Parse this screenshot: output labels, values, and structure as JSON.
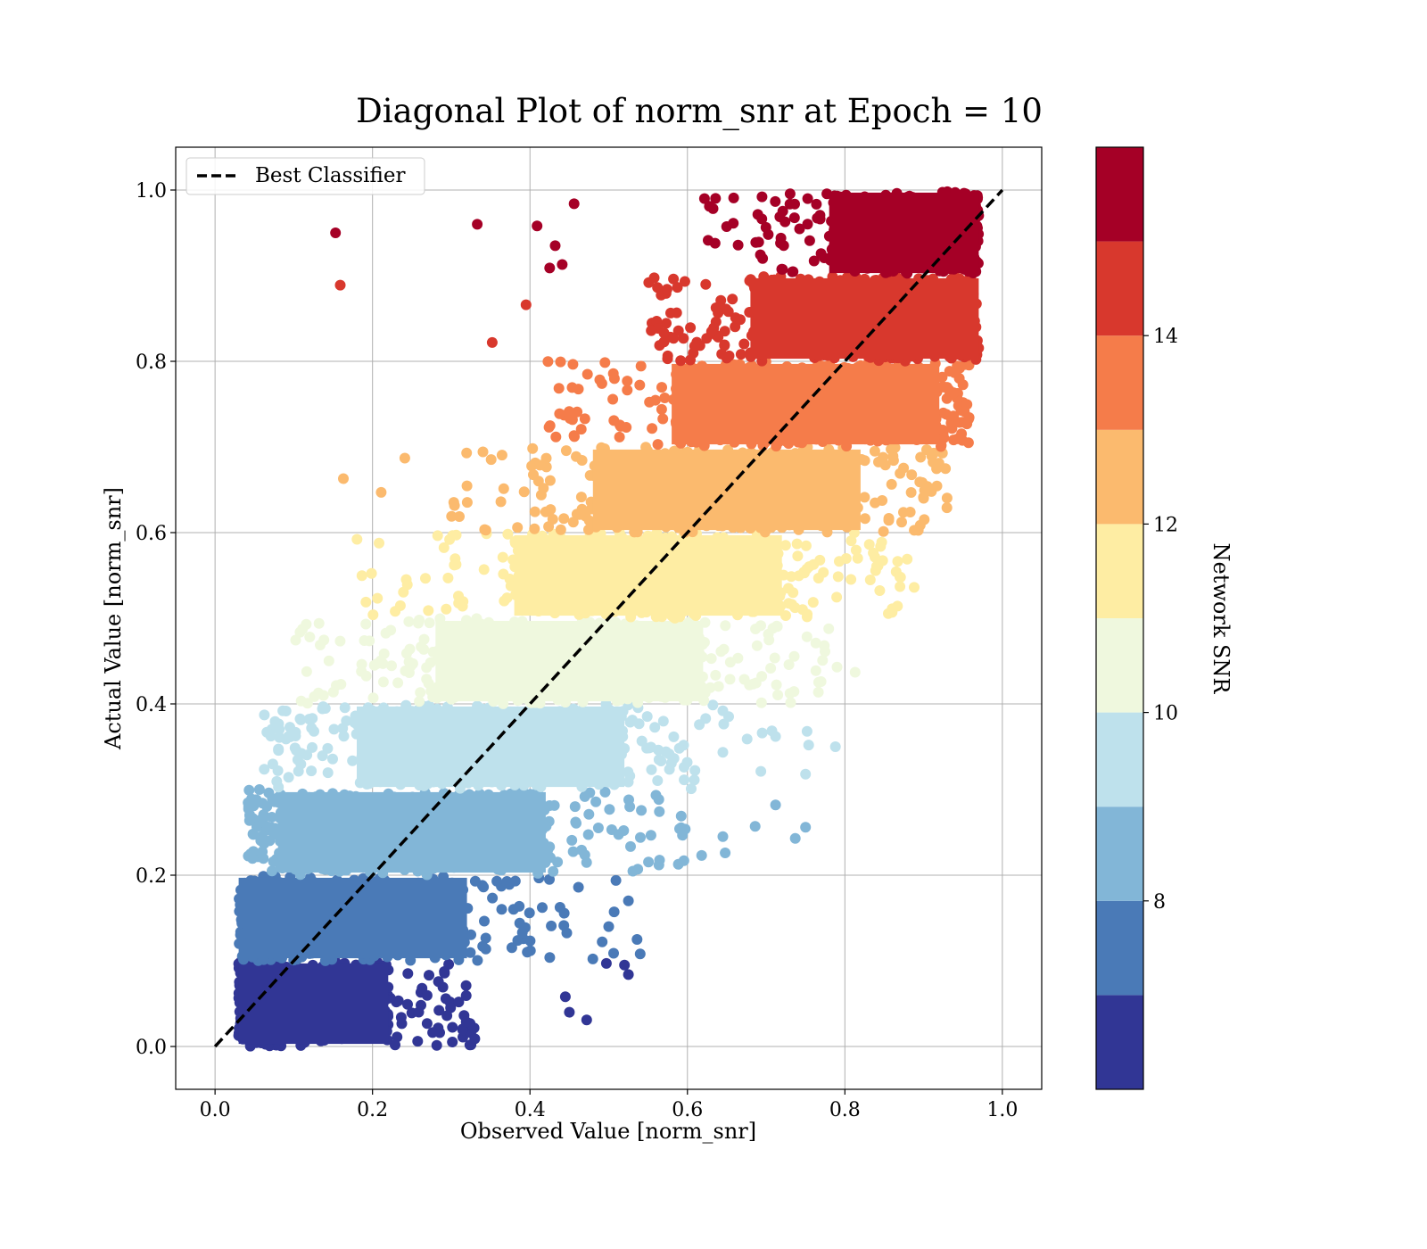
{
  "chart_data": {
    "type": "scatter",
    "title": "Diagonal Plot of norm_snr at Epoch = 10",
    "xlabel": "Observed Value [norm_snr]",
    "ylabel": "Actual Value [norm_snr]",
    "xlim": [
      -0.05,
      1.05
    ],
    "ylim": [
      -0.05,
      1.05
    ],
    "xticks": [
      0.0,
      0.2,
      0.4,
      0.6,
      0.8,
      1.0
    ],
    "yticks": [
      0.0,
      0.2,
      0.4,
      0.6,
      0.8,
      1.0
    ],
    "xtick_labels": [
      "0.0",
      "0.2",
      "0.4",
      "0.6",
      "0.8",
      "1.0"
    ],
    "ytick_labels": [
      "0.0",
      "0.2",
      "0.4",
      "0.6",
      "0.8",
      "1.0"
    ],
    "grid": true,
    "legend": {
      "placement": "top-left",
      "entries": [
        {
          "label": "Best Classifier",
          "style": "dashed",
          "color": "#000000"
        }
      ]
    },
    "reference_line": {
      "name": "Best Classifier",
      "x": [
        0.0,
        1.0
      ],
      "y": [
        0.0,
        1.0
      ]
    },
    "colorbar": {
      "label": "Network SNR",
      "range": [
        6,
        16
      ],
      "ticks": [
        8,
        10,
        12,
        14
      ],
      "tick_labels": [
        "8",
        "10",
        "12",
        "14"
      ],
      "bins": [
        {
          "min": 6,
          "max": 7,
          "color": "#313695"
        },
        {
          "min": 7,
          "max": 8,
          "color": "#4a7ab7"
        },
        {
          "min": 8,
          "max": 9,
          "color": "#82b6d7"
        },
        {
          "min": 9,
          "max": 10,
          "color": "#bee1ec"
        },
        {
          "min": 10,
          "max": 11,
          "color": "#eff8de"
        },
        {
          "min": 11,
          "max": 12,
          "color": "#feeda3"
        },
        {
          "min": 12,
          "max": 13,
          "color": "#fbba6e"
        },
        {
          "min": 13,
          "max": 14,
          "color": "#f57c4a"
        },
        {
          "min": 14,
          "max": 15,
          "color": "#d8382d"
        },
        {
          "min": 15,
          "max": 16,
          "color": "#a50026"
        }
      ]
    },
    "bands": [
      {
        "y_range": [
          0.0,
          0.1
        ],
        "x_range": [
          0.03,
          0.33
        ],
        "color": "#313695"
      },
      {
        "y_range": [
          0.1,
          0.2
        ],
        "x_range": [
          0.03,
          0.55
        ],
        "color": "#4a7ab7"
      },
      {
        "y_range": [
          0.2,
          0.3
        ],
        "x_range": [
          0.04,
          0.6
        ],
        "color": "#82b6d7"
      },
      {
        "y_range": [
          0.3,
          0.4
        ],
        "x_range": [
          0.06,
          0.72
        ],
        "color": "#bee1ec"
      },
      {
        "y_range": [
          0.4,
          0.5
        ],
        "x_range": [
          0.1,
          0.78
        ],
        "color": "#eff8de"
      },
      {
        "y_range": [
          0.5,
          0.6
        ],
        "x_range": [
          0.18,
          0.88
        ],
        "color": "#feeda3"
      },
      {
        "y_range": [
          0.6,
          0.7
        ],
        "x_range": [
          0.3,
          0.93
        ],
        "color": "#fbba6e"
      },
      {
        "y_range": [
          0.7,
          0.8
        ],
        "x_range": [
          0.42,
          0.96
        ],
        "color": "#f57c4a"
      },
      {
        "y_range": [
          0.8,
          0.9
        ],
        "x_range": [
          0.55,
          0.97
        ],
        "color": "#d8382d"
      },
      {
        "y_range": [
          0.9,
          1.0
        ],
        "x_range": [
          0.62,
          0.97
        ],
        "color": "#a50026"
      }
    ],
    "outliers": [
      {
        "x": 0.153,
        "y": 0.95,
        "color": "#a50026"
      },
      {
        "x": 0.159,
        "y": 0.889,
        "color": "#d8382d"
      },
      {
        "x": 0.333,
        "y": 0.96,
        "color": "#a50026"
      },
      {
        "x": 0.409,
        "y": 0.958,
        "color": "#a50026"
      },
      {
        "x": 0.456,
        "y": 0.984,
        "color": "#a50026"
      },
      {
        "x": 0.432,
        "y": 0.935,
        "color": "#a50026"
      },
      {
        "x": 0.441,
        "y": 0.913,
        "color": "#a50026"
      },
      {
        "x": 0.425,
        "y": 0.909,
        "color": "#a50026"
      },
      {
        "x": 0.395,
        "y": 0.866,
        "color": "#d8382d"
      },
      {
        "x": 0.352,
        "y": 0.822,
        "color": "#d8382d"
      },
      {
        "x": 0.163,
        "y": 0.663,
        "color": "#fbba6e"
      },
      {
        "x": 0.211,
        "y": 0.647,
        "color": "#fbba6e"
      },
      {
        "x": 0.241,
        "y": 0.687,
        "color": "#fbba6e"
      },
      {
        "x": 0.036,
        "y": 0.132,
        "color": "#4a7ab7"
      },
      {
        "x": 0.445,
        "y": 0.058,
        "color": "#313695"
      },
      {
        "x": 0.45,
        "y": 0.04,
        "color": "#313695"
      },
      {
        "x": 0.472,
        "y": 0.031,
        "color": "#313695"
      },
      {
        "x": 0.33,
        "y": 0.009,
        "color": "#313695"
      },
      {
        "x": 0.497,
        "y": 0.097,
        "color": "#313695"
      },
      {
        "x": 0.52,
        "y": 0.095,
        "color": "#313695"
      },
      {
        "x": 0.525,
        "y": 0.084,
        "color": "#313695"
      },
      {
        "x": 0.54,
        "y": 0.108,
        "color": "#4a7ab7"
      },
      {
        "x": 0.536,
        "y": 0.125,
        "color": "#4a7ab7"
      },
      {
        "x": 0.5,
        "y": 0.14,
        "color": "#4a7ab7"
      },
      {
        "x": 0.525,
        "y": 0.17,
        "color": "#4a7ab7"
      },
      {
        "x": 0.648,
        "y": 0.226,
        "color": "#82b6d7"
      },
      {
        "x": 0.686,
        "y": 0.257,
        "color": "#82b6d7"
      },
      {
        "x": 0.712,
        "y": 0.282,
        "color": "#82b6d7"
      },
      {
        "x": 0.737,
        "y": 0.243,
        "color": "#82b6d7"
      },
      {
        "x": 0.75,
        "y": 0.256,
        "color": "#82b6d7"
      },
      {
        "x": 0.618,
        "y": 0.223,
        "color": "#82b6d7"
      },
      {
        "x": 0.645,
        "y": 0.245,
        "color": "#82b6d7"
      },
      {
        "x": 0.788,
        "y": 0.35,
        "color": "#bee1ec"
      },
      {
        "x": 0.75,
        "y": 0.318,
        "color": "#bee1ec"
      },
      {
        "x": 0.752,
        "y": 0.368,
        "color": "#bee1ec"
      },
      {
        "x": 0.754,
        "y": 0.352,
        "color": "#bee1ec"
      },
      {
        "x": 0.695,
        "y": 0.366,
        "color": "#bee1ec"
      },
      {
        "x": 0.813,
        "y": 0.437,
        "color": "#eff8de"
      },
      {
        "x": 0.79,
        "y": 0.443,
        "color": "#eff8de"
      },
      {
        "x": 0.888,
        "y": 0.536,
        "color": "#feeda3"
      },
      {
        "x": 0.87,
        "y": 0.537,
        "color": "#feeda3"
      },
      {
        "x": 0.91,
        "y": 0.648,
        "color": "#fbba6e"
      },
      {
        "x": 0.883,
        "y": 0.624,
        "color": "#fbba6e"
      },
      {
        "x": 0.955,
        "y": 0.727,
        "color": "#f57c4a"
      },
      {
        "x": 0.957,
        "y": 0.705,
        "color": "#f57c4a"
      }
    ]
  }
}
